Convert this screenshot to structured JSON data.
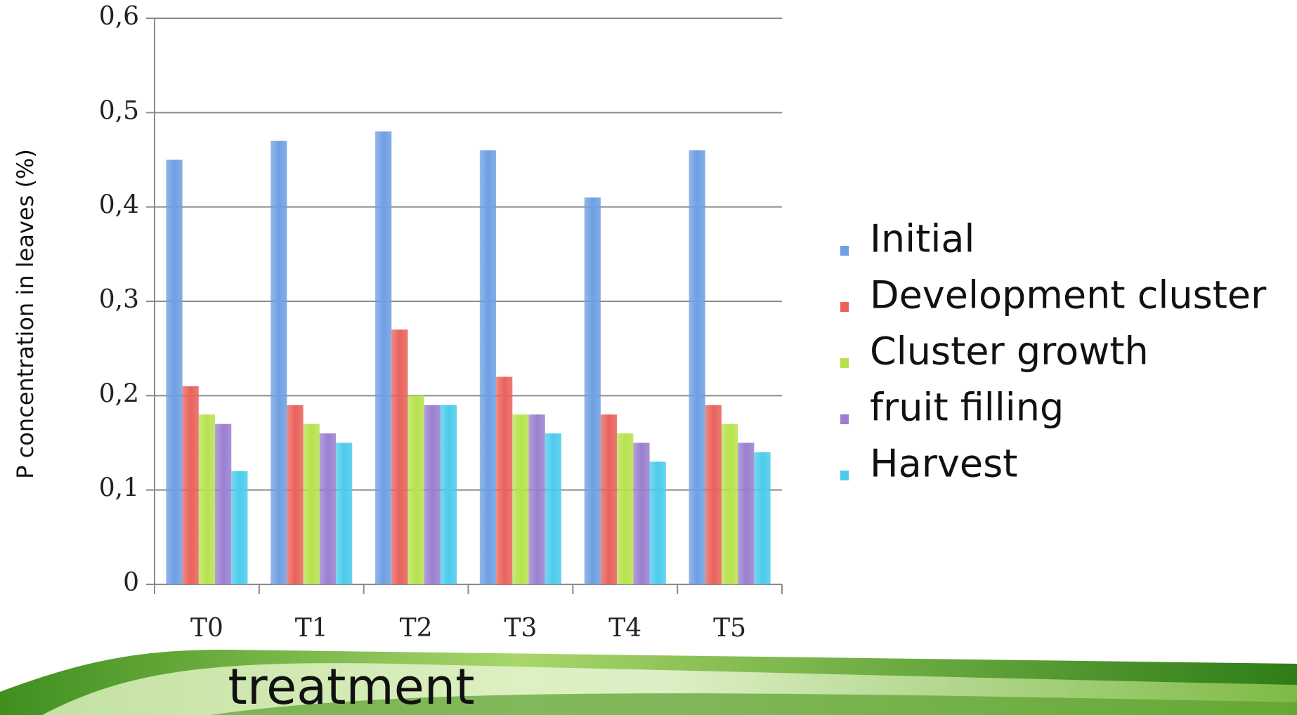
{
  "chart_data": {
    "type": "bar",
    "y_axis_label": "P concentration in leaves (%)",
    "x_axis_label": "treatment",
    "categories": [
      "T0",
      "T1",
      "T2",
      "T3",
      "T4",
      "T5"
    ],
    "series": [
      {
        "name": "Initial",
        "color": "#6f9fe2",
        "values": [
          0.45,
          0.47,
          0.48,
          0.46,
          0.41,
          0.46
        ]
      },
      {
        "name": "Development cluster",
        "color": "#e9625c",
        "values": [
          0.21,
          0.19,
          0.27,
          0.22,
          0.18,
          0.19
        ]
      },
      {
        "name": "Cluster growth",
        "color": "#b7e24e",
        "values": [
          0.18,
          0.17,
          0.2,
          0.18,
          0.16,
          0.17
        ]
      },
      {
        "name": "fruit filling",
        "color": "#9b7fd0",
        "values": [
          0.17,
          0.16,
          0.19,
          0.18,
          0.15,
          0.15
        ]
      },
      {
        "name": "Harvest",
        "color": "#4ccbec",
        "values": [
          0.12,
          0.15,
          0.19,
          0.16,
          0.13,
          0.14
        ]
      }
    ],
    "ylim": [
      0,
      0.6
    ],
    "yticks": [
      0,
      {
        "value": 0.1,
        "label": "0,1"
      },
      {
        "value": 0.2,
        "label": "0,2"
      },
      {
        "value": 0.3,
        "label": "0,3"
      },
      {
        "value": 0.4,
        "label": "0,4"
      },
      {
        "value": 0.5,
        "label": "0,5"
      },
      {
        "value": 0.6,
        "label": "0,6"
      }
    ],
    "grid": true,
    "legend": "right"
  }
}
